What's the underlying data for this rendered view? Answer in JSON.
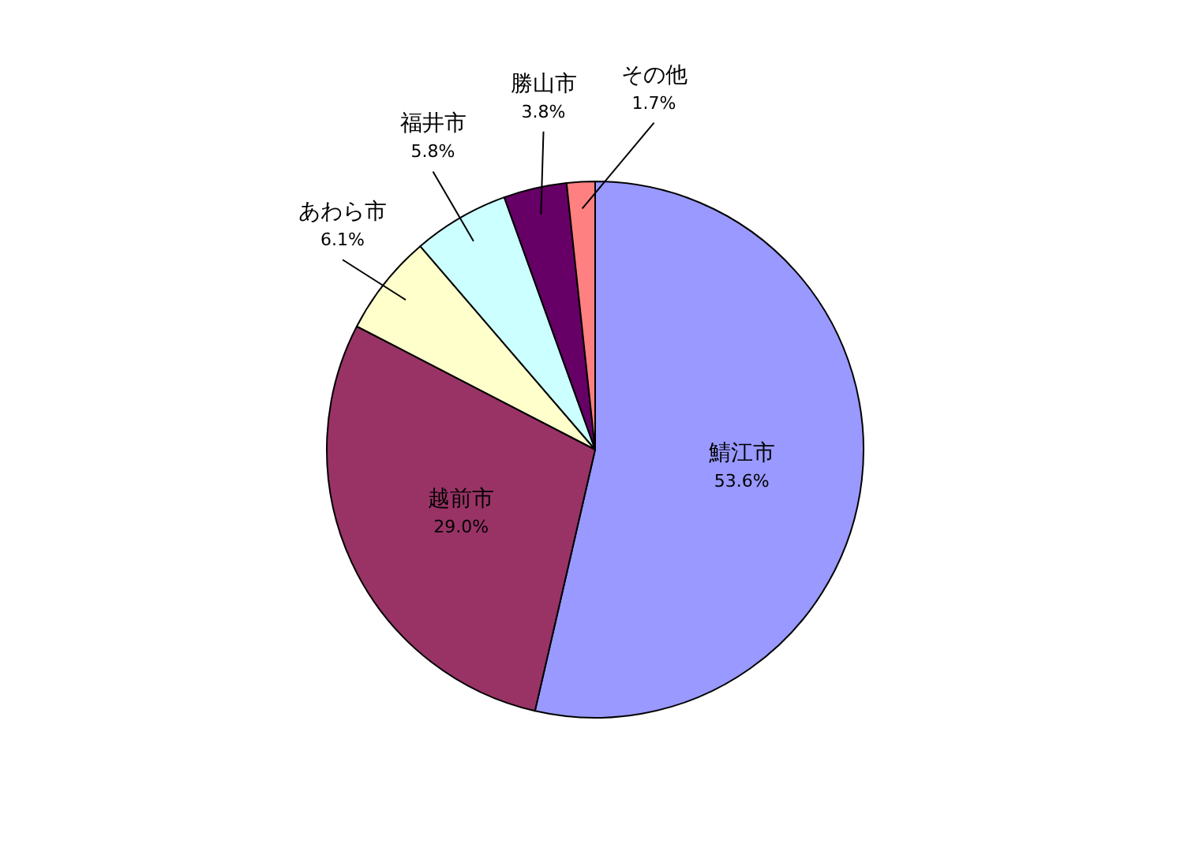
{
  "chart_data": {
    "type": "pie",
    "categories": [
      "鯖江市",
      "越前市",
      "あわら市",
      "福井市",
      "勝山市",
      "その他"
    ],
    "values": [
      53.6,
      29.0,
      6.1,
      5.8,
      3.8,
      1.7
    ],
    "colors": [
      "#9999ff",
      "#993366",
      "#ffffcc",
      "#ccffff",
      "#660066",
      "#ff8080"
    ],
    "value_labels": [
      "53.6%",
      "29.0%",
      "6.1%",
      "5.8%",
      "3.8%",
      "1.7%"
    ]
  }
}
